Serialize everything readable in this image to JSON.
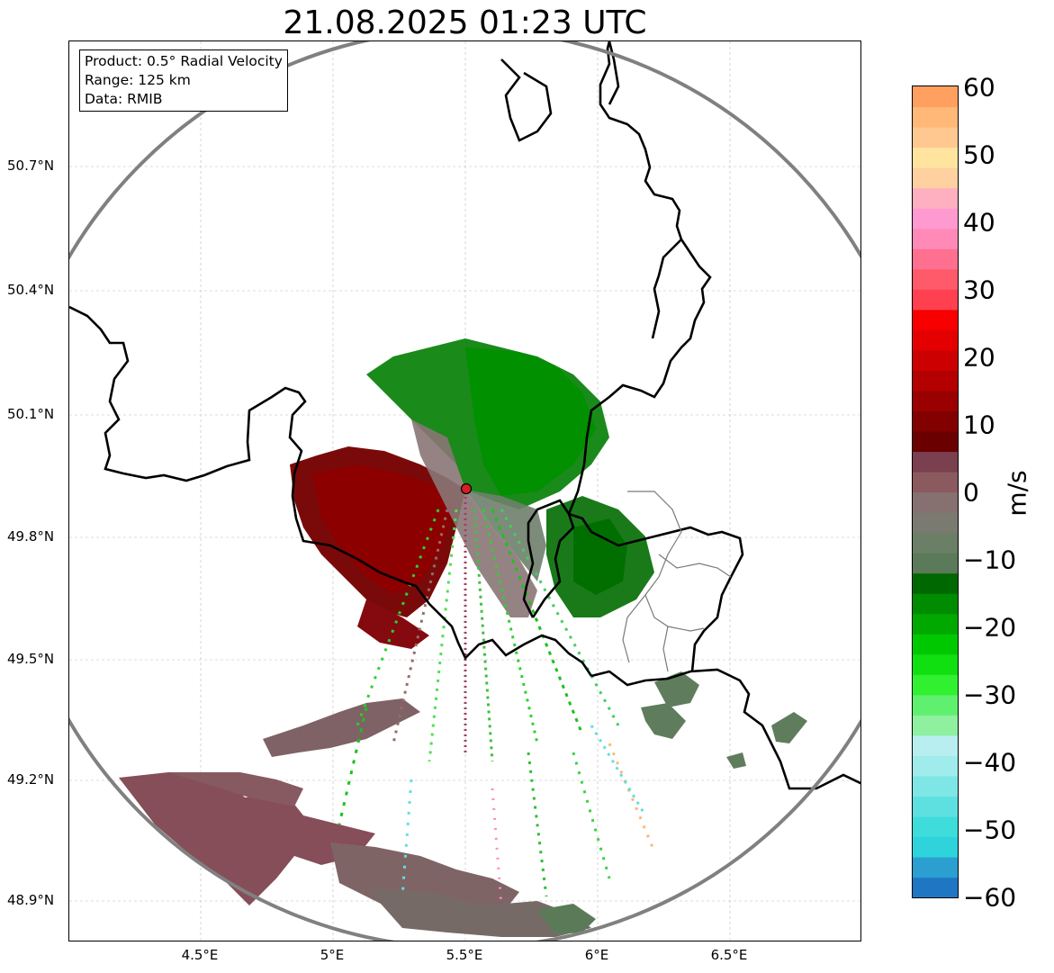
{
  "title": "21.08.2025 01:23 UTC",
  "info_box": {
    "product": "Product: 0.5° Radial Velocity",
    "range": "Range: 125 km",
    "data": "Data: RMIB"
  },
  "axes": {
    "lat_ticks": [
      "50.7°N",
      "50.4°N",
      "50.1°N",
      "49.8°N",
      "49.5°N",
      "49.2°N",
      "48.9°N"
    ],
    "lon_ticks": [
      "4.5°E",
      "5°E",
      "5.5°E",
      "6°E",
      "6.5°E"
    ]
  },
  "colorbar": {
    "unit": "m/s",
    "ticks": [
      "60",
      "50",
      "40",
      "30",
      "20",
      "10",
      "0",
      "−10",
      "−20",
      "−30",
      "−40",
      "−50",
      "−60"
    ],
    "range": [
      -60,
      60
    ],
    "colors": [
      "#1f77c4",
      "#2a9fd0",
      "#2fd3dc",
      "#3fdcdc",
      "#5fe0e0",
      "#7fe6e6",
      "#a0ecec",
      "#b8eef0",
      "#8ff0a0",
      "#60f070",
      "#30f030",
      "#10e010",
      "#00c800",
      "#00a800",
      "#008c00",
      "#006800",
      "#5a7a5a",
      "#6a7f66",
      "#7a7a70",
      "#867070",
      "#8a5a5e",
      "#7a4050",
      "#6a0000",
      "#820000",
      "#9a0000",
      "#b40000",
      "#cc0000",
      "#e40000",
      "#f80000",
      "#ff4050",
      "#ff5a6a",
      "#ff7090",
      "#ff8ab8",
      "#ff9ad0",
      "#ffb0c0",
      "#ffd0a0",
      "#ffe4a0",
      "#ffc890",
      "#ffb878",
      "#ffa060"
    ]
  },
  "radar": {
    "site_color": "#d42020",
    "range_ring_color": "#808080",
    "border_color": "#000000"
  }
}
